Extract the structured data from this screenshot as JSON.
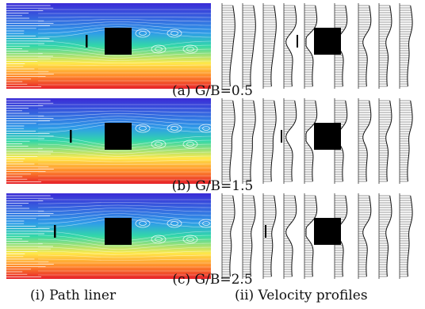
{
  "panels": [
    {
      "caption": "(a)  G/B=0.5",
      "gap_ratio": 0.5
    },
    {
      "caption": "(b)  G/B=1.5",
      "gap_ratio": 1.5
    },
    {
      "caption": "(c)  G/B=2.5",
      "gap_ratio": 2.5
    }
  ],
  "columns": {
    "left_label": "(i)  Path liner",
    "right_label": "(ii)  Velocity profiles"
  },
  "colors": {
    "top": "#3b2bd6",
    "mid": "#32d8a8",
    "low": "#ffe94a",
    "bottom": "#e6202a",
    "cylinder": "#000000"
  }
}
